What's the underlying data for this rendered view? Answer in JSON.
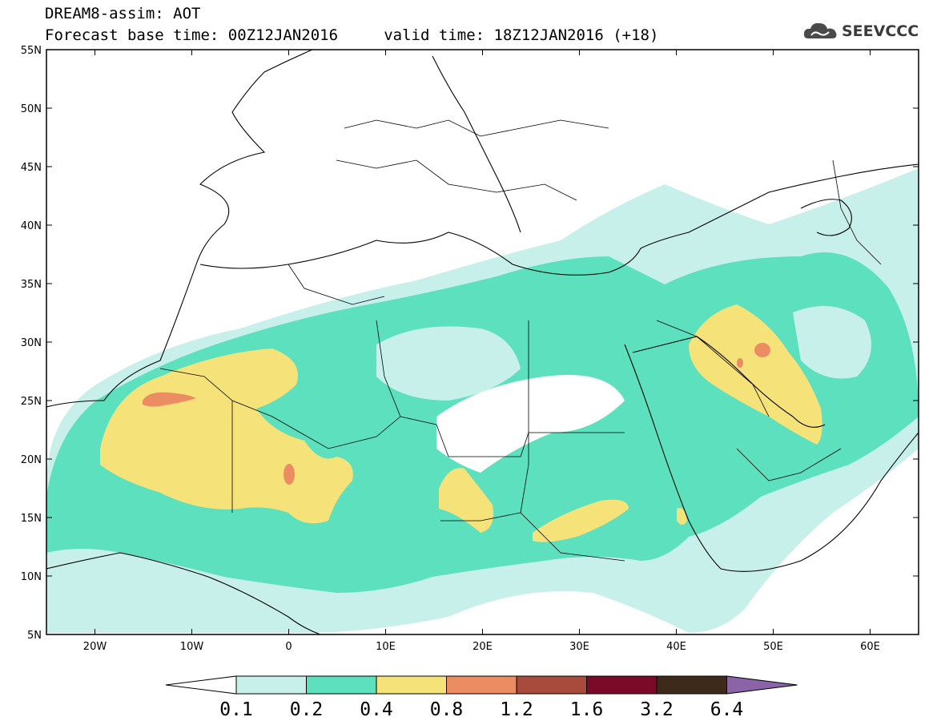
{
  "header": {
    "title_line1": "DREAM8-assim: AOT",
    "title_line2": "Forecast base time: 00Z12JAN2016     valid time: 18Z12JAN2016 (+18)"
  },
  "logo": {
    "text": "SEEVCCC",
    "icon": "cloud-logo-icon"
  },
  "map": {
    "lon_range": [
      -25,
      65
    ],
    "lat_range": [
      5,
      55
    ],
    "lon_ticks": [
      {
        "value": -20,
        "label": "20W"
      },
      {
        "value": -10,
        "label": "10W"
      },
      {
        "value": 0,
        "label": "0"
      },
      {
        "value": 10,
        "label": "10E"
      },
      {
        "value": 20,
        "label": "20E"
      },
      {
        "value": 30,
        "label": "30E"
      },
      {
        "value": 40,
        "label": "40E"
      },
      {
        "value": 50,
        "label": "50E"
      },
      {
        "value": 60,
        "label": "60E"
      }
    ],
    "lat_ticks": [
      {
        "value": 55,
        "label": "55N"
      },
      {
        "value": 50,
        "label": "50N"
      },
      {
        "value": 45,
        "label": "45N"
      },
      {
        "value": 40,
        "label": "40N"
      },
      {
        "value": 35,
        "label": "35N"
      },
      {
        "value": 30,
        "label": "30N"
      },
      {
        "value": 25,
        "label": "25N"
      },
      {
        "value": 20,
        "label": "20N"
      },
      {
        "value": 15,
        "label": "15N"
      },
      {
        "value": 10,
        "label": "10N"
      },
      {
        "value": 5,
        "label": "5N"
      }
    ]
  },
  "colorbar": {
    "labels": [
      "0.1",
      "0.2",
      "0.4",
      "0.8",
      "1.2",
      "1.6",
      "3.2",
      "6.4"
    ],
    "colors": [
      "#c8f0ea",
      "#5ce0bd",
      "#f5e278",
      "#ec8c62",
      "#a84a3c",
      "#7a0a28",
      "#3e2a1a",
      "#8a64a6"
    ]
  }
}
